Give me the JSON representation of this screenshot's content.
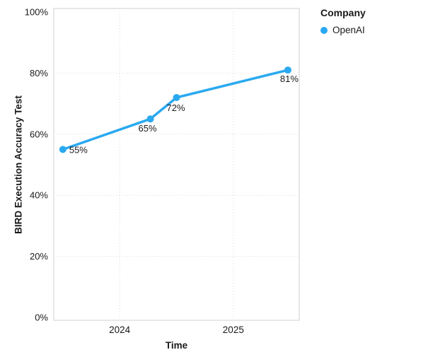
{
  "colors": {
    "accent": "#2aa9f0",
    "text": "#1a1a1a",
    "grid": "#d9d9d9",
    "plot_border": "#e8e8e8",
    "background": "#ffffff"
  },
  "chart_data": {
    "type": "line",
    "title": "",
    "xlabel": "Time",
    "ylabel": "BIRD Execution Accuracy Test",
    "xlim": [
      2023.42,
      2025.58
    ],
    "ylim": [
      0,
      100
    ],
    "grid": "dotted",
    "x_ticks": [
      {
        "value": 2024,
        "label": "2024"
      },
      {
        "value": 2025,
        "label": "2025"
      }
    ],
    "y_ticks": [
      {
        "value": 0,
        "label": "0%"
      },
      {
        "value": 20,
        "label": "20%"
      },
      {
        "value": 40,
        "label": "40%"
      },
      {
        "value": 60,
        "label": "60%"
      },
      {
        "value": 80,
        "label": "80%"
      },
      {
        "value": 100,
        "label": "100%"
      }
    ],
    "legend": {
      "title": "Company",
      "position": "top-right",
      "items": [
        {
          "label": "OpenAI",
          "color": "#2aa9f0"
        }
      ]
    },
    "series": [
      {
        "name": "OpenAI",
        "color": "#2aa9f0",
        "x": [
          2023.5,
          2024.27,
          2024.5,
          2025.48
        ],
        "y": [
          55,
          65,
          72,
          81
        ],
        "point_labels": [
          "55%",
          "65%",
          "72%",
          "81%"
        ],
        "label_offsets": [
          {
            "dx": 9,
            "dy": 5,
            "anchor": "start"
          },
          {
            "dx": -4,
            "dy": 18,
            "anchor": "middle"
          },
          {
            "dx": -1,
            "dy": 19,
            "anchor": "middle"
          },
          {
            "dx": 2,
            "dy": 17,
            "anchor": "middle"
          }
        ]
      }
    ]
  }
}
